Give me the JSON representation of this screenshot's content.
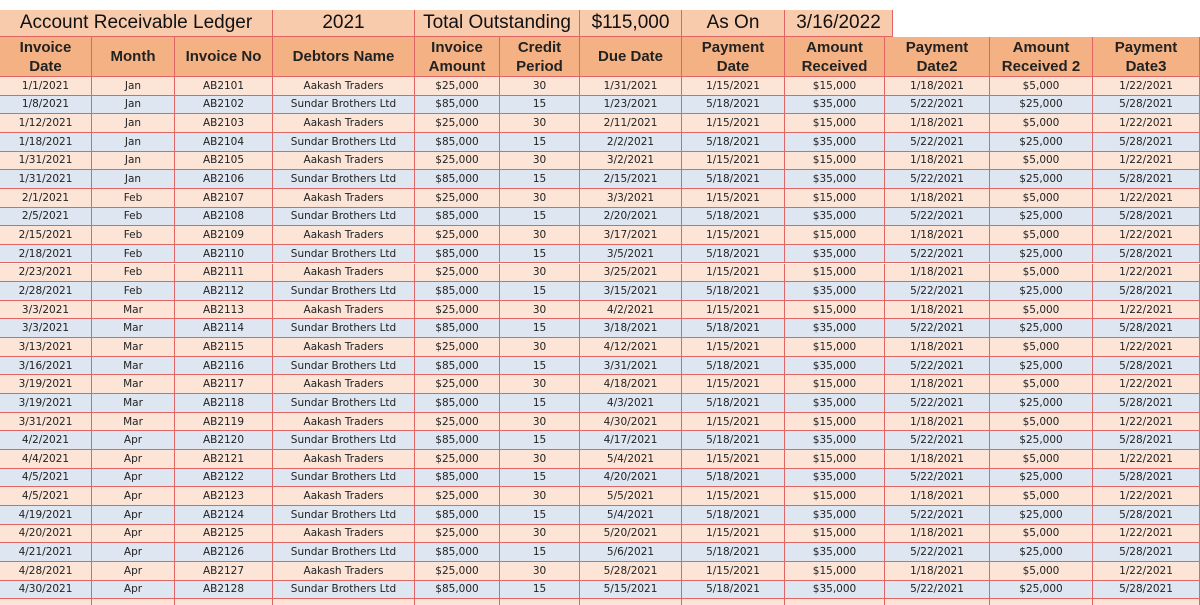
{
  "header": {
    "title": "Account Receivable Ledger",
    "year": "2021",
    "total_label": "Total Outstanding",
    "total_value": "$115,000",
    "as_on_label": "As On",
    "as_on_date": "3/16/2022"
  },
  "table": {
    "columns": [
      "Invoice\nDate",
      "Month",
      "Invoice No",
      "Debtors Name",
      "Invoice\nAmount",
      "Credit\nPeriod",
      "Due Date",
      "Payment\nDate",
      "Amount\nReceived",
      "Payment\nDate2",
      "Amount\nReceived 2",
      "Payment\nDate3"
    ],
    "rows": [
      [
        "1/1/2021",
        "Jan",
        "AB2101",
        "Aakash Traders",
        "$25,000",
        "30",
        "1/31/2021",
        "1/15/2021",
        "$15,000",
        "1/18/2021",
        "$5,000",
        "1/22/2021"
      ],
      [
        "1/8/2021",
        "Jan",
        "AB2102",
        "Sundar Brothers Ltd",
        "$85,000",
        "15",
        "1/23/2021",
        "5/18/2021",
        "$35,000",
        "5/22/2021",
        "$25,000",
        "5/28/2021"
      ],
      [
        "1/12/2021",
        "Jan",
        "AB2103",
        "Aakash Traders",
        "$25,000",
        "30",
        "2/11/2021",
        "1/15/2021",
        "$15,000",
        "1/18/2021",
        "$5,000",
        "1/22/2021"
      ],
      [
        "1/18/2021",
        "Jan",
        "AB2104",
        "Sundar Brothers Ltd",
        "$85,000",
        "15",
        "2/2/2021",
        "5/18/2021",
        "$35,000",
        "5/22/2021",
        "$25,000",
        "5/28/2021"
      ],
      [
        "1/31/2021",
        "Jan",
        "AB2105",
        "Aakash Traders",
        "$25,000",
        "30",
        "3/2/2021",
        "1/15/2021",
        "$15,000",
        "1/18/2021",
        "$5,000",
        "1/22/2021"
      ],
      [
        "1/31/2021",
        "Jan",
        "AB2106",
        "Sundar Brothers Ltd",
        "$85,000",
        "15",
        "2/15/2021",
        "5/18/2021",
        "$35,000",
        "5/22/2021",
        "$25,000",
        "5/28/2021"
      ],
      [
        "2/1/2021",
        "Feb",
        "AB2107",
        "Aakash Traders",
        "$25,000",
        "30",
        "3/3/2021",
        "1/15/2021",
        "$15,000",
        "1/18/2021",
        "$5,000",
        "1/22/2021"
      ],
      [
        "2/5/2021",
        "Feb",
        "AB2108",
        "Sundar Brothers Ltd",
        "$85,000",
        "15",
        "2/20/2021",
        "5/18/2021",
        "$35,000",
        "5/22/2021",
        "$25,000",
        "5/28/2021"
      ],
      [
        "2/15/2021",
        "Feb",
        "AB2109",
        "Aakash Traders",
        "$25,000",
        "30",
        "3/17/2021",
        "1/15/2021",
        "$15,000",
        "1/18/2021",
        "$5,000",
        "1/22/2021"
      ],
      [
        "2/18/2021",
        "Feb",
        "AB2110",
        "Sundar Brothers Ltd",
        "$85,000",
        "15",
        "3/5/2021",
        "5/18/2021",
        "$35,000",
        "5/22/2021",
        "$25,000",
        "5/28/2021"
      ],
      [
        "2/23/2021",
        "Feb",
        "AB2111",
        "Aakash Traders",
        "$25,000",
        "30",
        "3/25/2021",
        "1/15/2021",
        "$15,000",
        "1/18/2021",
        "$5,000",
        "1/22/2021"
      ],
      [
        "2/28/2021",
        "Feb",
        "AB2112",
        "Sundar Brothers Ltd",
        "$85,000",
        "15",
        "3/15/2021",
        "5/18/2021",
        "$35,000",
        "5/22/2021",
        "$25,000",
        "5/28/2021"
      ],
      [
        "3/3/2021",
        "Mar",
        "AB2113",
        "Aakash Traders",
        "$25,000",
        "30",
        "4/2/2021",
        "1/15/2021",
        "$15,000",
        "1/18/2021",
        "$5,000",
        "1/22/2021"
      ],
      [
        "3/3/2021",
        "Mar",
        "AB2114",
        "Sundar Brothers Ltd",
        "$85,000",
        "15",
        "3/18/2021",
        "5/18/2021",
        "$35,000",
        "5/22/2021",
        "$25,000",
        "5/28/2021"
      ],
      [
        "3/13/2021",
        "Mar",
        "AB2115",
        "Aakash Traders",
        "$25,000",
        "30",
        "4/12/2021",
        "1/15/2021",
        "$15,000",
        "1/18/2021",
        "$5,000",
        "1/22/2021"
      ],
      [
        "3/16/2021",
        "Mar",
        "AB2116",
        "Sundar Brothers Ltd",
        "$85,000",
        "15",
        "3/31/2021",
        "5/18/2021",
        "$35,000",
        "5/22/2021",
        "$25,000",
        "5/28/2021"
      ],
      [
        "3/19/2021",
        "Mar",
        "AB2117",
        "Aakash Traders",
        "$25,000",
        "30",
        "4/18/2021",
        "1/15/2021",
        "$15,000",
        "1/18/2021",
        "$5,000",
        "1/22/2021"
      ],
      [
        "3/19/2021",
        "Mar",
        "AB2118",
        "Sundar Brothers Ltd",
        "$85,000",
        "15",
        "4/3/2021",
        "5/18/2021",
        "$35,000",
        "5/22/2021",
        "$25,000",
        "5/28/2021"
      ],
      [
        "3/31/2021",
        "Mar",
        "AB2119",
        "Aakash Traders",
        "$25,000",
        "30",
        "4/30/2021",
        "1/15/2021",
        "$15,000",
        "1/18/2021",
        "$5,000",
        "1/22/2021"
      ],
      [
        "4/2/2021",
        "Apr",
        "AB2120",
        "Sundar Brothers Ltd",
        "$85,000",
        "15",
        "4/17/2021",
        "5/18/2021",
        "$35,000",
        "5/22/2021",
        "$25,000",
        "5/28/2021"
      ],
      [
        "4/4/2021",
        "Apr",
        "AB2121",
        "Aakash Traders",
        "$25,000",
        "30",
        "5/4/2021",
        "1/15/2021",
        "$15,000",
        "1/18/2021",
        "$5,000",
        "1/22/2021"
      ],
      [
        "4/5/2021",
        "Apr",
        "AB2122",
        "Sundar Brothers Ltd",
        "$85,000",
        "15",
        "4/20/2021",
        "5/18/2021",
        "$35,000",
        "5/22/2021",
        "$25,000",
        "5/28/2021"
      ],
      [
        "4/5/2021",
        "Apr",
        "AB2123",
        "Aakash Traders",
        "$25,000",
        "30",
        "5/5/2021",
        "1/15/2021",
        "$15,000",
        "1/18/2021",
        "$5,000",
        "1/22/2021"
      ],
      [
        "4/19/2021",
        "Apr",
        "AB2124",
        "Sundar Brothers Ltd",
        "$85,000",
        "15",
        "5/4/2021",
        "5/18/2021",
        "$35,000",
        "5/22/2021",
        "$25,000",
        "5/28/2021"
      ],
      [
        "4/20/2021",
        "Apr",
        "AB2125",
        "Aakash Traders",
        "$25,000",
        "30",
        "5/20/2021",
        "1/15/2021",
        "$15,000",
        "1/18/2021",
        "$5,000",
        "1/22/2021"
      ],
      [
        "4/21/2021",
        "Apr",
        "AB2126",
        "Sundar Brothers Ltd",
        "$85,000",
        "15",
        "5/6/2021",
        "5/18/2021",
        "$35,000",
        "5/22/2021",
        "$25,000",
        "5/28/2021"
      ],
      [
        "4/28/2021",
        "Apr",
        "AB2127",
        "Aakash Traders",
        "$25,000",
        "30",
        "5/28/2021",
        "1/15/2021",
        "$15,000",
        "1/18/2021",
        "$5,000",
        "1/22/2021"
      ],
      [
        "4/30/2021",
        "Apr",
        "AB2128",
        "Sundar Brothers Ltd",
        "$85,000",
        "15",
        "5/15/2021",
        "5/18/2021",
        "$35,000",
        "5/22/2021",
        "$25,000",
        "5/28/2021"
      ]
    ]
  }
}
